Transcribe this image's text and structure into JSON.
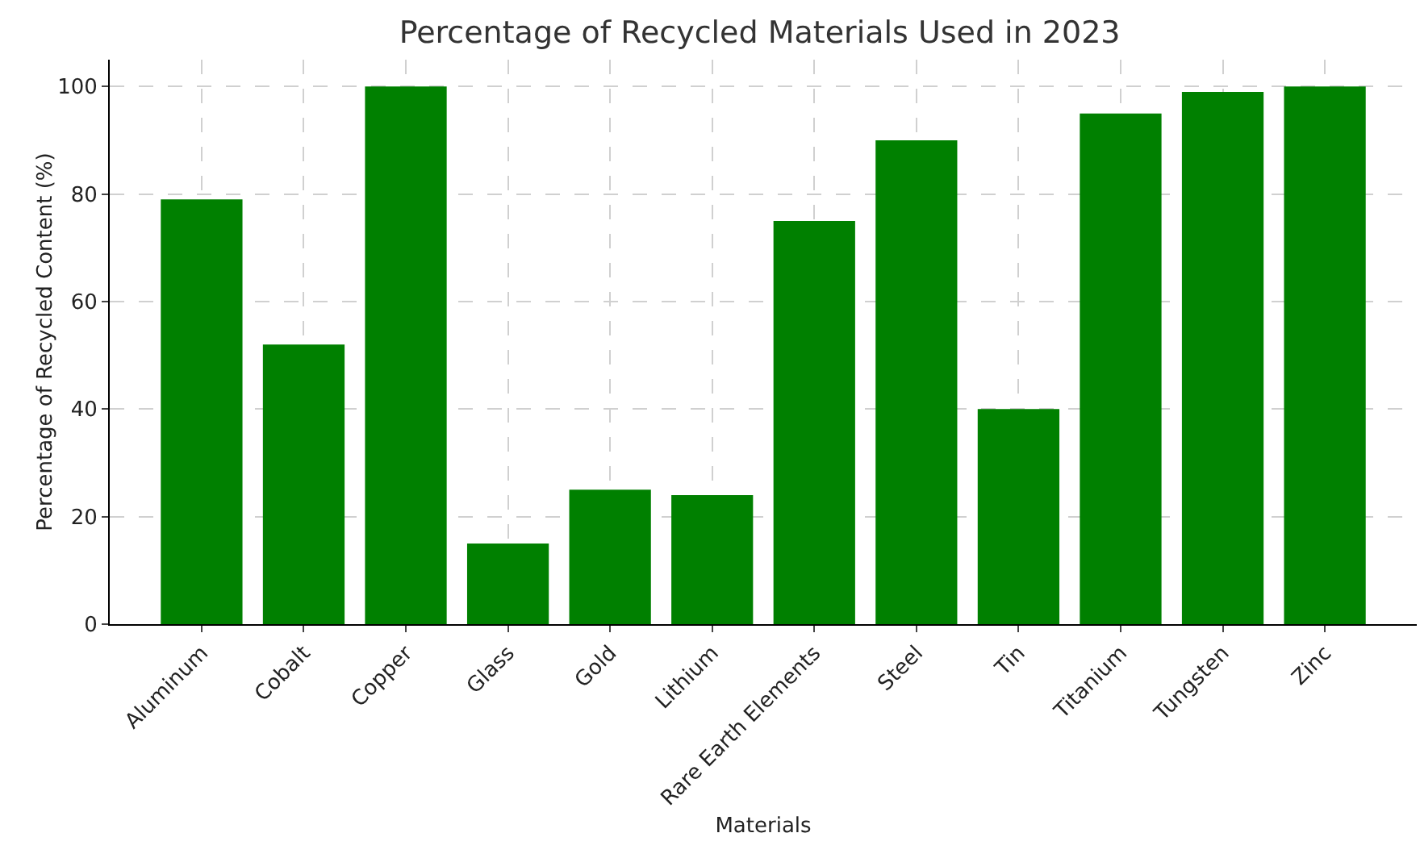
{
  "chart_data": {
    "type": "bar",
    "title": "Percentage of Recycled Materials Used in 2023",
    "xlabel": "Materials",
    "ylabel": "Percentage of Recycled Content (%)",
    "categories": [
      "Aluminum",
      "Cobalt",
      "Copper",
      "Glass",
      "Gold",
      "Lithium",
      "Rare Earth Elements",
      "Steel",
      "Tin",
      "Titanium",
      "Tungsten",
      "Zinc"
    ],
    "values": [
      79,
      52,
      100,
      15,
      25,
      24,
      75,
      90,
      40,
      95,
      99,
      100
    ],
    "color": "#008000",
    "ylim": [
      0,
      105
    ],
    "yticks": [
      0,
      20,
      40,
      60,
      80,
      100
    ],
    "grid": true
  }
}
